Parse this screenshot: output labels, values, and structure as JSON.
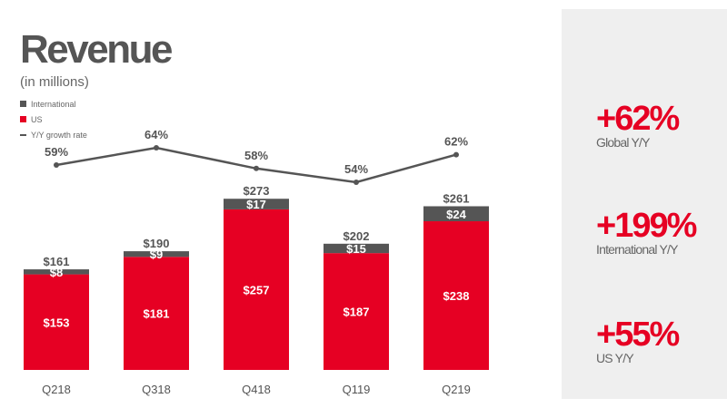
{
  "chart_data": {
    "type": "bar",
    "title": "Revenue",
    "subtitle": "(in millions)",
    "stacked": true,
    "categories": [
      "Q218",
      "Q318",
      "Q418",
      "Q119",
      "Q219"
    ],
    "series": [
      {
        "name": "US",
        "color": "#e60023",
        "values": [
          153,
          181,
          257,
          187,
          238
        ],
        "labels": [
          "$153",
          "$181",
          "$257",
          "$187",
          "$238"
        ]
      },
      {
        "name": "International",
        "color": "#555555",
        "values": [
          8,
          9,
          17,
          15,
          24
        ],
        "labels": [
          "$8",
          "$9",
          "$17",
          "$15",
          "$24"
        ]
      }
    ],
    "totals": [
      161,
      190,
      273,
      202,
      261
    ],
    "total_labels": [
      "$161",
      "$190",
      "$273",
      "$202",
      "$261"
    ],
    "line_series": {
      "name": "Y/Y growth rate",
      "color": "#555555",
      "values": [
        59,
        64,
        58,
        54,
        62
      ],
      "labels": [
        "59%",
        "64%",
        "58%",
        "54%",
        "62%"
      ]
    },
    "legend": [
      "International",
      "US",
      "Y/Y growth rate"
    ],
    "legend_placement": "top-left",
    "grid": false
  },
  "stats": [
    {
      "value": "+62%",
      "label": "Global Y/Y"
    },
    {
      "value": "+199%",
      "label": "International Y/Y"
    },
    {
      "value": "+55%",
      "label": "US Y/Y"
    }
  ]
}
